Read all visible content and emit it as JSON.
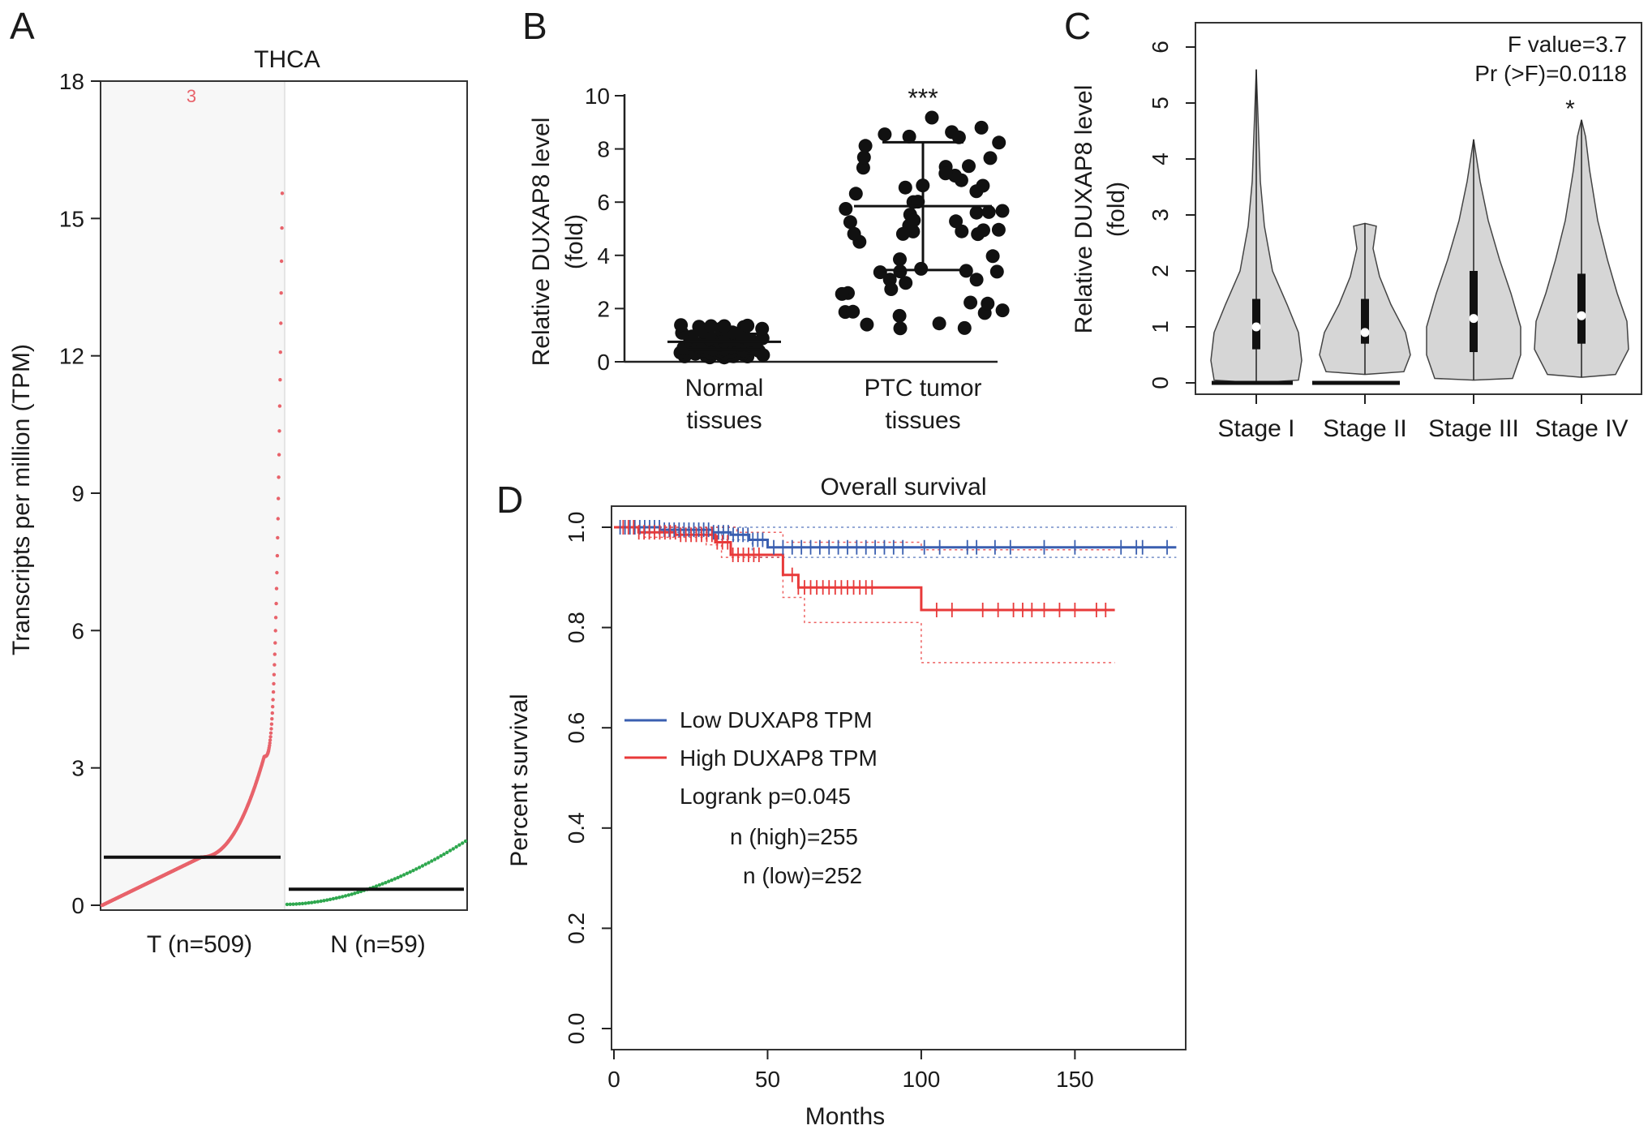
{
  "panels": {
    "A": {
      "letter": "A",
      "chart_title": "THCA",
      "ylabel": "Transcripts per million (TPM)",
      "ylim": [
        0,
        18
      ],
      "yticks": [
        "0",
        "3",
        "6",
        "9",
        "12",
        "15",
        "18"
      ],
      "outlier_marker": "3",
      "groups": [
        {
          "label": "T (n=509)",
          "n": 509,
          "median": 1.05,
          "color": "#e8636b",
          "max": 15.55
        },
        {
          "label": "N (n=59)",
          "n": 59,
          "median": 0.35,
          "color": "#2fa84f",
          "max": 1.4
        }
      ]
    },
    "B": {
      "letter": "B",
      "ylabel_line1": "Relative DUXAP8 level",
      "ylabel_line2": "(fold)",
      "ylim": [
        0,
        10
      ],
      "yticks": [
        "0",
        "2",
        "4",
        "6",
        "8",
        "10"
      ],
      "significance": "***",
      "groups": [
        {
          "label_line1": "Normal",
          "label_line2": "tissues",
          "mean": 0.75,
          "sd": 0.3
        },
        {
          "label_line1": "PTC tumor",
          "label_line2": "tissues",
          "mean": 5.85,
          "sd": 2.4
        }
      ]
    },
    "C": {
      "letter": "C",
      "ylabel_line1": "Relative DUXAP8 level",
      "ylabel_line2": "(fold)",
      "ylim": [
        0,
        6
      ],
      "yticks": [
        "0",
        "1",
        "2",
        "3",
        "4",
        "5",
        "6"
      ],
      "stat_line1": "F value=3.7",
      "stat_line2": "Pr (>F)=0.0118",
      "significance": "*",
      "stages": [
        {
          "label": "Stage I",
          "median": 1.0,
          "q1": 0.6,
          "q3": 1.5,
          "min": 0.0,
          "max": 5.6
        },
        {
          "label": "Stage II",
          "median": 0.9,
          "q1": 0.7,
          "q3": 1.5,
          "min": 0.15,
          "max": 2.85
        },
        {
          "label": "Stage III",
          "median": 1.15,
          "q1": 0.55,
          "q3": 2.0,
          "min": 0.05,
          "max": 4.35
        },
        {
          "label": "Stage IV",
          "median": 1.2,
          "q1": 0.7,
          "q3": 1.95,
          "min": 0.1,
          "max": 4.7
        }
      ]
    },
    "D": {
      "letter": "D",
      "chart_title": "Overall survival",
      "xlabel": "Months",
      "ylabel": "Percent survival",
      "xlim": [
        0,
        185
      ],
      "ylim": [
        0,
        1.05
      ],
      "xticks": [
        "0",
        "50",
        "100",
        "150"
      ],
      "yticks": [
        "0.0",
        "0.2",
        "0.4",
        "0.6",
        "0.8",
        "1.0"
      ],
      "legend": {
        "low": "Low DUXAP8 TPM",
        "high": "High DUXAP8 TPM",
        "colors": {
          "low": "#3a5fb0",
          "high": "#e83a3a"
        }
      },
      "logrank": "Logrank p=0.045",
      "n_high": "n (high)=255",
      "n_low": "n (low)=252"
    }
  },
  "chart_data": [
    {
      "type": "scatter",
      "panel": "A",
      "title": "THCA",
      "ylabel": "Transcripts per million (TPM)",
      "ylim": [
        0,
        18
      ],
      "categories": [
        "T (n=509)",
        "N (n=59)"
      ],
      "series": [
        {
          "name": "T",
          "n": 509,
          "median": 1.05,
          "min": 0.0,
          "max": 15.55
        },
        {
          "name": "N",
          "n": 59,
          "median": 0.35,
          "min": 0.0,
          "max": 1.4
        }
      ]
    },
    {
      "type": "scatter",
      "panel": "B",
      "ylabel": "Relative DUXAP8 level (fold)",
      "ylim": [
        0,
        10
      ],
      "categories": [
        "Normal tissues",
        "PTC tumor tissues"
      ],
      "series": [
        {
          "name": "Normal tissues",
          "mean": 0.75,
          "sd": 0.3,
          "range": [
            0.1,
            1.4
          ]
        },
        {
          "name": "PTC tumor tissues",
          "mean": 5.85,
          "sd": 2.4,
          "range": [
            1.2,
            9.4
          ]
        }
      ]
    },
    {
      "type": "violin",
      "panel": "C",
      "ylabel": "Relative DUXAP8 level (fold)",
      "ylim": [
        0,
        6
      ],
      "categories": [
        "Stage I",
        "Stage II",
        "Stage III",
        "Stage IV"
      ],
      "medians": [
        1.0,
        0.9,
        1.15,
        1.2
      ],
      "maxima": [
        5.6,
        2.85,
        4.35,
        4.7
      ],
      "annotations": [
        "F value=3.7",
        "Pr (>F)=0.0118",
        "*"
      ]
    },
    {
      "type": "line",
      "panel": "D",
      "title": "Overall survival",
      "xlabel": "Months",
      "ylabel": "Percent survival",
      "xlim": [
        0,
        185
      ],
      "ylim": [
        0,
        1.05
      ],
      "series": [
        {
          "name": "Low DUXAP8 TPM",
          "x": [
            0,
            15,
            32,
            38,
            44,
            50,
            183
          ],
          "y": [
            1.0,
            0.995,
            0.99,
            0.985,
            0.975,
            0.96,
            0.96
          ]
        },
        {
          "name": "High DUXAP8 TPM",
          "x": [
            0,
            8,
            20,
            33,
            38,
            55,
            60,
            100,
            163
          ],
          "y": [
            1.0,
            0.99,
            0.985,
            0.97,
            0.945,
            0.905,
            0.88,
            0.835,
            0.835
          ]
        }
      ],
      "annotations": [
        "Logrank p=0.045",
        "n (high)=255",
        "n (low)=252"
      ]
    }
  ]
}
